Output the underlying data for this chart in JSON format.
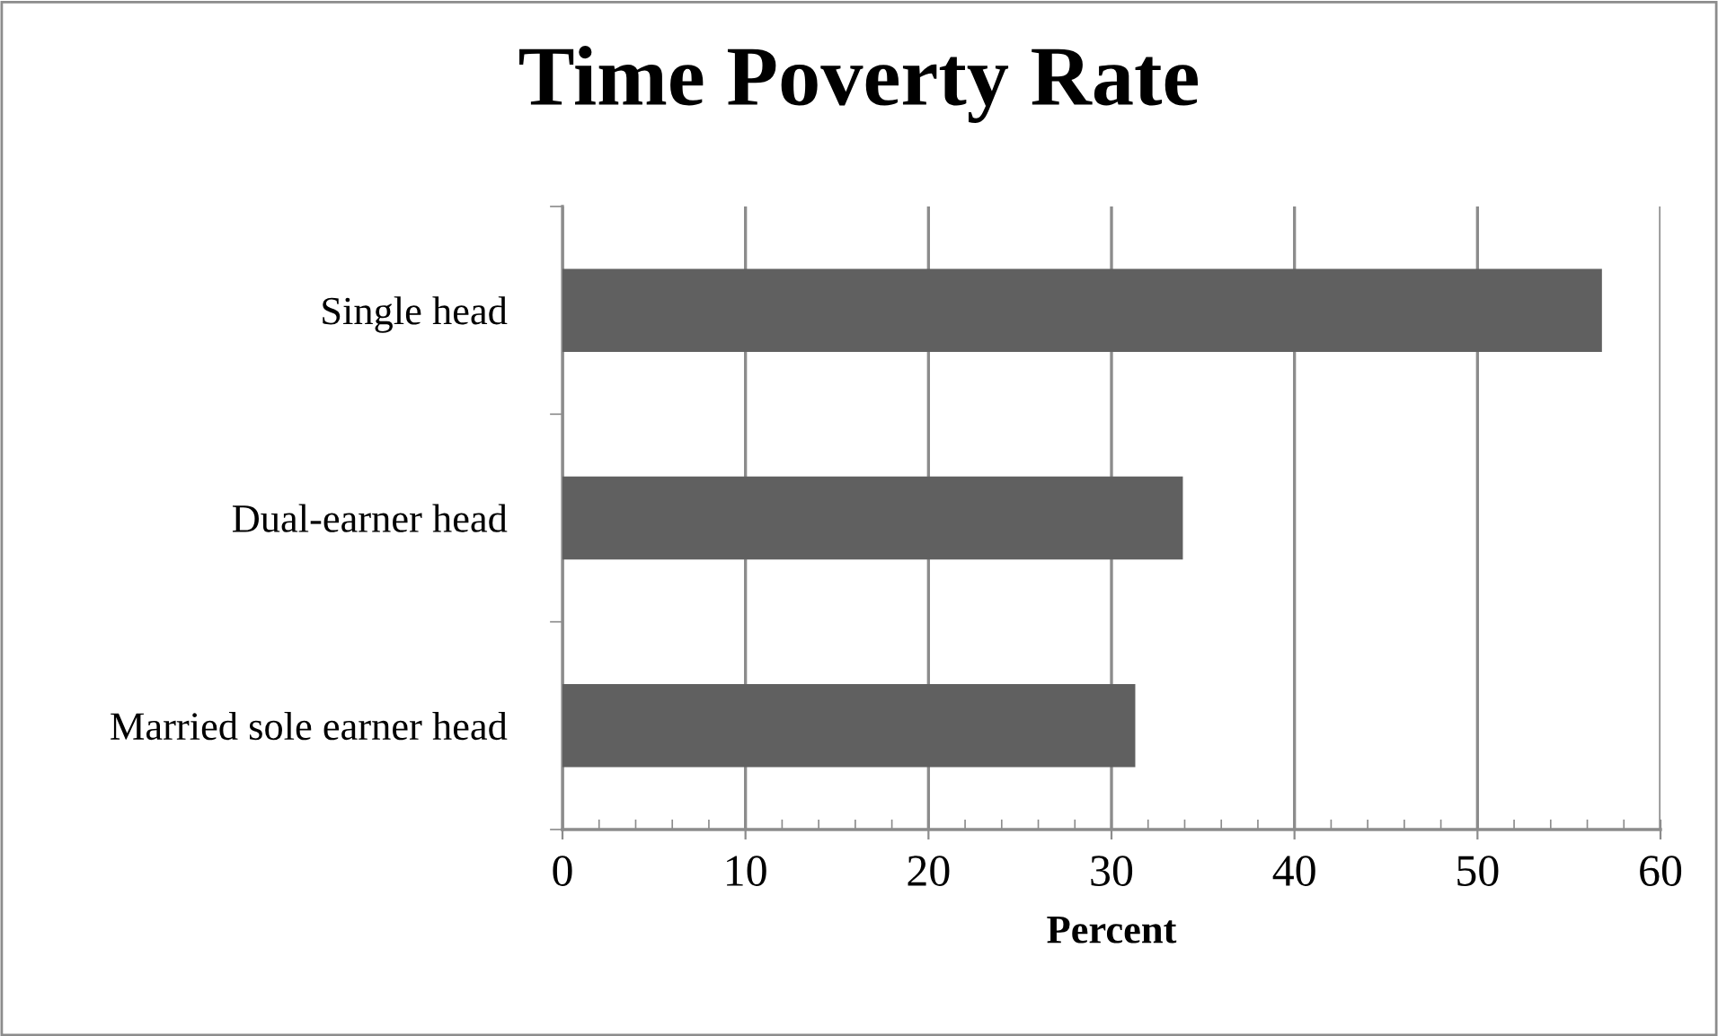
{
  "chart_data": {
    "type": "bar",
    "orientation": "horizontal",
    "title": "Time Poverty Rate",
    "xlabel": "Percent",
    "categories": [
      "Single head",
      "Dual-earner head",
      "Married sole earner head"
    ],
    "values": [
      56.8,
      33.9,
      31.3
    ],
    "color": "#606060",
    "xlim": [
      0,
      60
    ],
    "xticks": [
      0,
      10,
      20,
      30,
      40,
      50,
      60
    ],
    "grid": "x",
    "legend": false
  }
}
